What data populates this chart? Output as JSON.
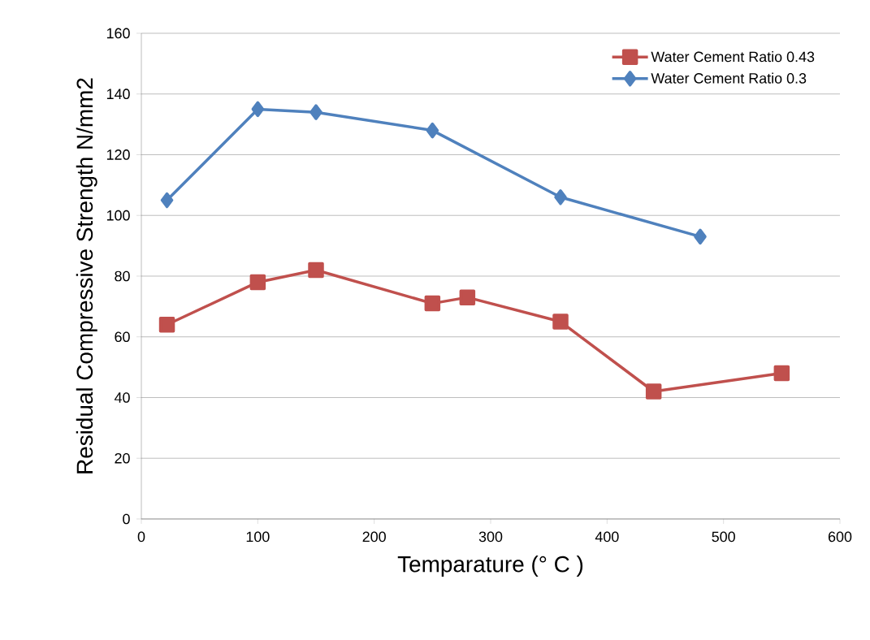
{
  "chart_data": {
    "type": "line",
    "xlabel": "Temparature (° C )",
    "ylabel": "Residual Compressive Strength N/mm2",
    "xlim": [
      0,
      600
    ],
    "xticks": [
      0,
      100,
      200,
      300,
      400,
      500,
      600
    ],
    "ylim": [
      0,
      160
    ],
    "yticks": [
      0,
      20,
      40,
      60,
      80,
      100,
      120,
      140,
      160
    ],
    "grid": "y",
    "legend": "top right",
    "line_style": "solid",
    "series": [
      {
        "name": "Water Cement Ratio 0.43",
        "color": "#c0504d",
        "marker": "square",
        "x": [
          22,
          100,
          150,
          250,
          280,
          360,
          440,
          550
        ],
        "values": [
          64,
          78,
          82,
          71,
          73,
          65,
          42,
          48
        ]
      },
      {
        "name": "Water Cement Ratio 0.3",
        "color": "#4f81bd",
        "marker": "diamond",
        "x": [
          22,
          100,
          150,
          250,
          360,
          480
        ],
        "values": [
          105,
          135,
          134,
          128,
          106,
          93
        ]
      }
    ]
  }
}
